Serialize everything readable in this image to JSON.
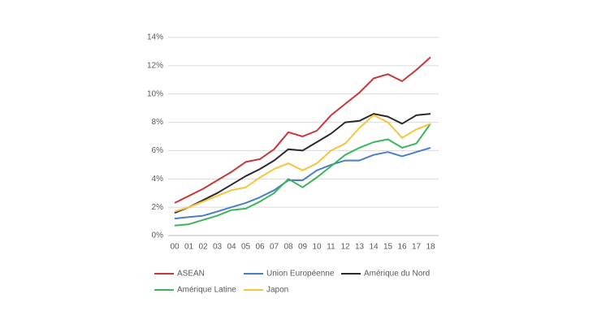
{
  "chart_data": {
    "type": "line",
    "categories": [
      "00",
      "01",
      "02",
      "03",
      "04",
      "05",
      "06",
      "07",
      "08",
      "09",
      "10",
      "11",
      "12",
      "13",
      "14",
      "15",
      "16",
      "17",
      "18"
    ],
    "series": [
      {
        "name": "ASEAN",
        "color": "#c8373a",
        "values": [
          2.3,
          2.8,
          3.3,
          3.9,
          4.5,
          5.2,
          5.4,
          6.1,
          7.3,
          7.0,
          7.4,
          8.5,
          9.3,
          10.1,
          11.1,
          11.4,
          10.9,
          11.7,
          12.6
        ]
      },
      {
        "name": "Union Européenne",
        "color": "#4a7ec8",
        "values": [
          1.2,
          1.3,
          1.4,
          1.7,
          2.0,
          2.3,
          2.7,
          3.2,
          3.9,
          3.9,
          4.6,
          5.0,
          5.3,
          5.3,
          5.7,
          5.9,
          5.6,
          5.9,
          6.2
        ]
      },
      {
        "name": "Amérique du Nord",
        "color": "#2b2b2b",
        "values": [
          1.6,
          2.0,
          2.5,
          3.0,
          3.6,
          4.2,
          4.7,
          5.3,
          6.1,
          6.0,
          6.6,
          7.2,
          8.0,
          8.1,
          8.6,
          8.4,
          7.9,
          8.5,
          8.6
        ]
      },
      {
        "name": "Amérique Latine",
        "color": "#3cb55a",
        "values": [
          0.7,
          0.8,
          1.1,
          1.4,
          1.8,
          1.9,
          2.4,
          3.0,
          4.0,
          3.4,
          4.1,
          4.9,
          5.7,
          6.2,
          6.6,
          6.8,
          6.2,
          6.5,
          7.9
        ]
      },
      {
        "name": "Japon",
        "color": "#f7c33a",
        "values": [
          1.7,
          2.0,
          2.4,
          2.8,
          3.2,
          3.4,
          4.1,
          4.7,
          5.1,
          4.6,
          5.1,
          6.0,
          6.5,
          7.6,
          8.5,
          8.0,
          6.9,
          7.5,
          7.9
        ]
      }
    ],
    "ylim": [
      0,
      14
    ],
    "yticks": [
      {
        "value": 0,
        "label": "0%"
      },
      {
        "value": 2,
        "label": "2%"
      },
      {
        "value": 4,
        "label": "4%"
      },
      {
        "value": 6,
        "label": "6%"
      },
      {
        "value": 8,
        "label": "8%"
      },
      {
        "value": 10,
        "label": "10%"
      },
      {
        "value": 12,
        "label": "12%"
      },
      {
        "value": 14,
        "label": "14%"
      }
    ],
    "grid": true,
    "legend": "bottom"
  }
}
